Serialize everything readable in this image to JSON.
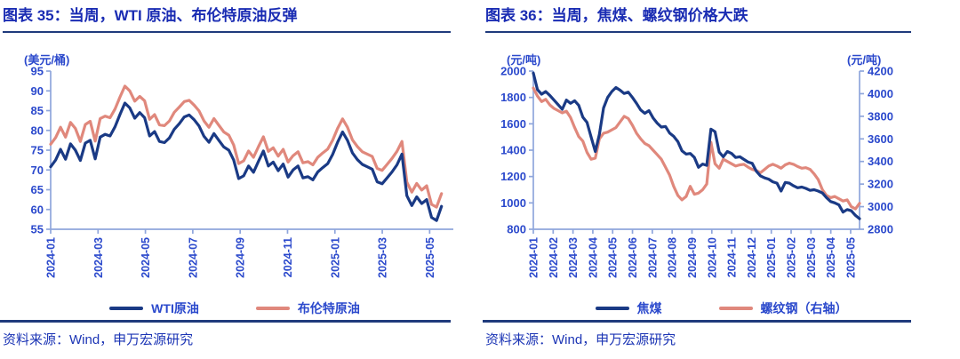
{
  "colors": {
    "title": "#1a2cb3",
    "tick": "#2b49cc",
    "axis": "#8fa6dc",
    "rule": "#1f3a7c",
    "source_text": "#1c35b5",
    "series_blue": "#1a3a85",
    "series_salmon": "#e0887c",
    "background": "#ffffff"
  },
  "panels": [
    {
      "title": "图表 35：当周，WTI 原油、布伦特原油反弹",
      "source": "资料来源：Wind，申万宏源研究"
    },
    {
      "title": "图表 36：当周，焦煤、螺纹钢价格大跌",
      "source": "资料来源：Wind，申万宏源研究"
    }
  ],
  "chart_data": [
    {
      "type": "line",
      "title": "图表 35：当周，WTI 原油、布伦特原油反弹",
      "y_left": {
        "label": "(美元/桶)",
        "min": 55,
        "max": 95,
        "step": 5
      },
      "y_right": null,
      "x_tick_labels": [
        "2024-01",
        "2024-03",
        "2024-05",
        "2024-07",
        "2024-09",
        "2024-11",
        "2025-01",
        "2025-03",
        "2025-05"
      ],
      "x_tick_step_months": 2,
      "x_domain_months": 17.0,
      "data_end_month": 16.5,
      "grid": false,
      "legend_position": "bottom",
      "series": [
        {
          "name": "WTI原油",
          "axis": "left",
          "color": "#1a3a85",
          "values": [
            70.8,
            72.5,
            75.2,
            72.7,
            76.6,
            75.0,
            72.4,
            76.8,
            77.5,
            72.8,
            78.3,
            79.0,
            78.6,
            80.9,
            84.0,
            86.9,
            85.7,
            83.1,
            84.5,
            83.2,
            78.6,
            79.7,
            77.2,
            76.9,
            78.1,
            80.3,
            81.7,
            83.4,
            83.9,
            82.7,
            81.1,
            78.5,
            77.0,
            79.2,
            77.5,
            75.8,
            75.0,
            72.5,
            67.8,
            68.5,
            71.0,
            69.4,
            72.2,
            74.8,
            71.0,
            72.0,
            69.8,
            71.5,
            68.2,
            70.0,
            71.0,
            68.0,
            68.3,
            67.5,
            69.5,
            70.6,
            71.6,
            73.9,
            77.0,
            79.6,
            77.5,
            74.3,
            72.6,
            71.4,
            70.8,
            70.2,
            67.0,
            66.5,
            68.0,
            69.5,
            71.3,
            74.0,
            63.5,
            61.0,
            63.2,
            61.5,
            62.5,
            58.0,
            57.2,
            60.8
          ]
        },
        {
          "name": "布伦特原油",
          "axis": "left",
          "color": "#e0887c",
          "values": [
            76.5,
            78.2,
            80.8,
            78.3,
            82.0,
            80.5,
            77.2,
            81.5,
            82.3,
            77.3,
            83.0,
            83.6,
            83.2,
            85.4,
            88.4,
            91.2,
            90.0,
            87.4,
            88.6,
            87.5,
            82.8,
            84.0,
            81.4,
            81.2,
            82.4,
            84.6,
            85.9,
            87.3,
            87.6,
            86.4,
            84.9,
            82.4,
            80.8,
            83.0,
            81.3,
            79.6,
            78.8,
            76.3,
            71.6,
            72.3,
            74.8,
            73.2,
            75.9,
            78.4,
            74.7,
            75.6,
            73.5,
            75.2,
            72.0,
            73.6,
            74.6,
            71.8,
            72.1,
            71.3,
            73.2,
            74.3,
            75.3,
            77.5,
            80.5,
            82.9,
            80.8,
            77.6,
            75.9,
            74.6,
            74.0,
            73.4,
            70.4,
            69.9,
            71.4,
            72.9,
            74.7,
            77.2,
            66.9,
            64.4,
            66.6,
            64.9,
            66.0,
            61.3,
            60.6,
            64.0
          ]
        }
      ]
    },
    {
      "type": "line",
      "title": "图表 36：当周，焦煤、螺纹钢价格大跌",
      "y_left": {
        "label": "(元/吨)",
        "min": 800,
        "max": 2000,
        "step": 200
      },
      "y_right": {
        "label": "(元/吨)",
        "min": 2800,
        "max": 4200,
        "step": 200
      },
      "x_tick_labels": [
        "2024-01",
        "2024-02",
        "2024-03",
        "2024-04",
        "2024-05",
        "2024-06",
        "2024-07",
        "2024-08",
        "2024-09",
        "2024-10",
        "2024-11",
        "2024-12",
        "2025-01",
        "2025-02",
        "2025-03",
        "2025-04",
        "2025-05"
      ],
      "x_tick_step_months": 1,
      "x_domain_months": 16.45,
      "data_end_month": 16.45,
      "grid": false,
      "legend_position": "bottom",
      "series": [
        {
          "name": "焦煤",
          "axis": "left",
          "color": "#1a3a85",
          "values": [
            1985,
            1860,
            1825,
            1845,
            1815,
            1780,
            1745,
            1710,
            1780,
            1755,
            1775,
            1740,
            1650,
            1610,
            1500,
            1390,
            1520,
            1720,
            1800,
            1845,
            1875,
            1855,
            1830,
            1840,
            1800,
            1755,
            1705,
            1680,
            1700,
            1645,
            1605,
            1575,
            1580,
            1530,
            1505,
            1465,
            1395,
            1370,
            1375,
            1345,
            1270,
            1295,
            1285,
            1560,
            1540,
            1385,
            1350,
            1390,
            1375,
            1345,
            1350,
            1330,
            1310,
            1300,
            1240,
            1205,
            1190,
            1180,
            1160,
            1150,
            1090,
            1155,
            1150,
            1130,
            1115,
            1120,
            1110,
            1095,
            1100,
            1090,
            1075,
            1040,
            1010,
            1000,
            985,
            930,
            950,
            940,
            905,
            880
          ]
        },
        {
          "name": "螺纹钢（右轴）",
          "axis": "right",
          "color": "#e0887c",
          "values": [
            4050,
            3980,
            3930,
            3950,
            3900,
            3870,
            3850,
            3830,
            3845,
            3790,
            3700,
            3620,
            3580,
            3480,
            3420,
            3430,
            3600,
            3650,
            3660,
            3680,
            3700,
            3750,
            3800,
            3780,
            3720,
            3650,
            3600,
            3560,
            3540,
            3500,
            3460,
            3420,
            3350,
            3280,
            3180,
            3100,
            3060,
            3090,
            3180,
            3110,
            3120,
            3150,
            3200,
            3570,
            3380,
            3340,
            3420,
            3400,
            3380,
            3360,
            3370,
            3375,
            3350,
            3330,
            3320,
            3300,
            3330,
            3360,
            3375,
            3360,
            3340,
            3370,
            3385,
            3375,
            3355,
            3340,
            3345,
            3330,
            3290,
            3240,
            3150,
            3100,
            3080,
            3090,
            3070,
            3050,
            3060,
            3000,
            2980,
            3030
          ]
        }
      ]
    }
  ]
}
